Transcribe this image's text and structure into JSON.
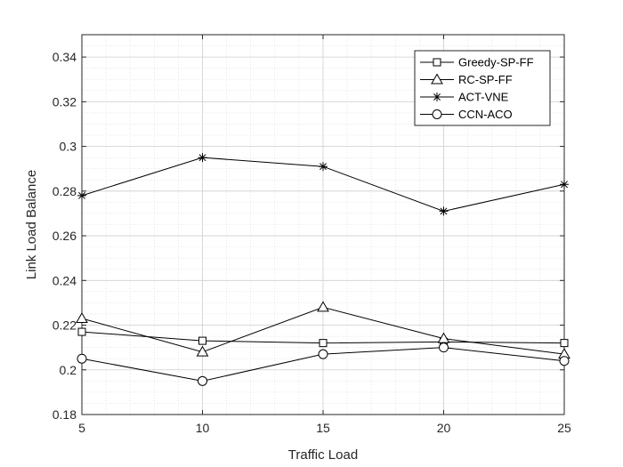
{
  "chart_data": {
    "type": "line",
    "title": "",
    "xlabel": "Traffic Load",
    "ylabel": "Link Load Balance",
    "x": [
      5,
      10,
      15,
      20,
      25
    ],
    "xlim": [
      5,
      25
    ],
    "ylim": [
      0.18,
      0.35
    ],
    "xticks": [
      "5",
      "10",
      "15",
      "20",
      "25"
    ],
    "yticks": [
      "0.18",
      "0.2",
      "0.22",
      "0.24",
      "0.26",
      "0.28",
      "0.3",
      "0.32",
      "0.34"
    ],
    "grid": true,
    "minor_grid": true,
    "legend_position": "top-right",
    "series": [
      {
        "name": "Greedy-SP-FF",
        "marker": "square",
        "values": [
          0.217,
          0.213,
          0.212,
          0.2125,
          0.212
        ]
      },
      {
        "name": "RC-SP-FF",
        "marker": "triangle",
        "values": [
          0.223,
          0.208,
          0.228,
          0.214,
          0.207
        ]
      },
      {
        "name": "ACT-VNE",
        "marker": "asterisk",
        "values": [
          0.278,
          0.295,
          0.291,
          0.271,
          0.283
        ]
      },
      {
        "name": "CCN-ACO",
        "marker": "circle",
        "values": [
          0.205,
          0.195,
          0.207,
          0.21,
          0.204
        ]
      }
    ]
  },
  "colors": {
    "line": "#000000",
    "axis": "#262626",
    "grid": "#d9d9d9"
  }
}
